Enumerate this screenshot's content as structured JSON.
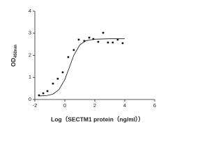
{
  "chart_data": {
    "type": "scatter",
    "x_label": "Log（SECTM1 protein（ng/ml））",
    "y_label": {
      "main": "OD",
      "sub": "450nm"
    },
    "x": [
      -1.72,
      -1.44,
      -1.16,
      -0.79,
      -0.47,
      -0.14,
      0.23,
      0.6,
      0.93,
      1.3,
      1.63,
      1.9,
      2.23,
      2.56,
      2.88,
      3.2,
      3.53,
      3.86
    ],
    "values": [
      0.19,
      0.28,
      0.38,
      0.72,
      0.94,
      1.23,
      1.92,
      2.24,
      2.71,
      2.65,
      2.8,
      2.74,
      2.61,
      3.02,
      2.58,
      2.58,
      2.71,
      2.55
    ],
    "fit_curve": {
      "x": [
        -1.7,
        -1.2,
        -0.8,
        -0.4,
        0,
        0.3,
        0.6,
        1.0,
        1.4,
        2.0,
        3.0,
        4.0
      ],
      "y": [
        0.16,
        0.18,
        0.24,
        0.44,
        0.9,
        1.45,
        2.0,
        2.47,
        2.66,
        2.73,
        2.75,
        2.75
      ]
    },
    "color": "#111111",
    "xlim": [
      -2,
      6
    ],
    "xticks": [
      -2,
      0,
      2,
      4,
      6
    ],
    "ylim": [
      0,
      4
    ],
    "yticks": [
      0,
      1,
      2,
      3,
      4
    ]
  }
}
